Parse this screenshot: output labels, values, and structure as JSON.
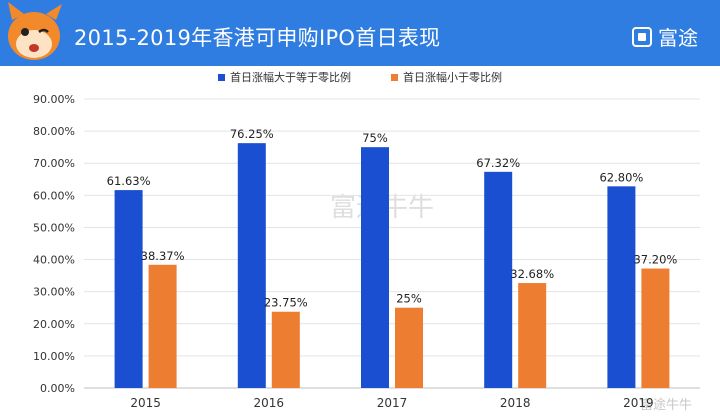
{
  "header": {
    "title": "2015-2019年香港可申购IPO首日表现",
    "brand": "富途"
  },
  "watermark": "富途牛牛",
  "corner_watermark": "富途牛牛",
  "colors": {
    "header": "#2f7de1",
    "series_up": "#1a4fd1",
    "series_down": "#ed7d31"
  },
  "chart_data": {
    "type": "bar",
    "categories": [
      "2015",
      "2016",
      "2017",
      "2018",
      "2019"
    ],
    "series": [
      {
        "name": "首日涨幅大于等于零比例",
        "values": [
          61.63,
          76.25,
          75,
          67.32,
          62.8
        ],
        "labels": [
          "61.63%",
          "76.25%",
          "75%",
          "67.32%",
          "62.80%"
        ]
      },
      {
        "name": "首日涨幅小于零比例",
        "values": [
          38.37,
          23.75,
          25,
          32.68,
          37.2
        ],
        "labels": [
          "38.37%",
          "23.75%",
          "25%",
          "32.68%",
          "37.20%"
        ]
      }
    ],
    "ylim": [
      0,
      90
    ],
    "yticks": [
      "0.00%",
      "10.00%",
      "20.00%",
      "30.00%",
      "40.00%",
      "50.00%",
      "60.00%",
      "70.00%",
      "80.00%",
      "90.00%"
    ],
    "legend_position": "top",
    "grid": true
  }
}
